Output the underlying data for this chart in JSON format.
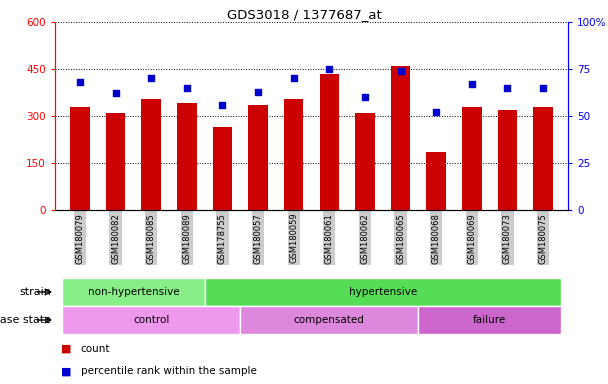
{
  "title": "GDS3018 / 1377687_at",
  "samples": [
    "GSM180079",
    "GSM180082",
    "GSM180085",
    "GSM180089",
    "GSM178755",
    "GSM180057",
    "GSM180059",
    "GSM180061",
    "GSM180062",
    "GSM180065",
    "GSM180068",
    "GSM180069",
    "GSM180073",
    "GSM180075"
  ],
  "counts": [
    330,
    310,
    355,
    340,
    265,
    335,
    355,
    435,
    310,
    460,
    185,
    330,
    320,
    330
  ],
  "percentiles": [
    68,
    62,
    70,
    65,
    56,
    63,
    70,
    75,
    60,
    74,
    52,
    67,
    65,
    65
  ],
  "ylim_left": [
    0,
    600
  ],
  "ylim_right": [
    0,
    100
  ],
  "yticks_left": [
    0,
    150,
    300,
    450,
    600
  ],
  "yticks_right": [
    0,
    25,
    50,
    75,
    100
  ],
  "ytick_right_labels": [
    "0",
    "25",
    "50",
    "75",
    "100%"
  ],
  "bar_color": "#cc0000",
  "dot_color": "#0000cc",
  "strain_groups": [
    {
      "label": "non-hypertensive",
      "start": 0,
      "end": 4,
      "color": "#88ee88"
    },
    {
      "label": "hypertensive",
      "start": 4,
      "end": 14,
      "color": "#55dd55"
    }
  ],
  "disease_groups": [
    {
      "label": "control",
      "start": 0,
      "end": 5,
      "color": "#ee99ee"
    },
    {
      "label": "compensated",
      "start": 5,
      "end": 10,
      "color": "#dd88dd"
    },
    {
      "label": "failure",
      "start": 10,
      "end": 14,
      "color": "#cc66cc"
    }
  ],
  "legend_count_label": "count",
  "legend_pct_label": "percentile rank within the sample",
  "strain_label": "strain",
  "disease_label": "disease state",
  "tick_bg": "#cccccc",
  "fig_width": 6.08,
  "fig_height": 3.84,
  "dpi": 100
}
